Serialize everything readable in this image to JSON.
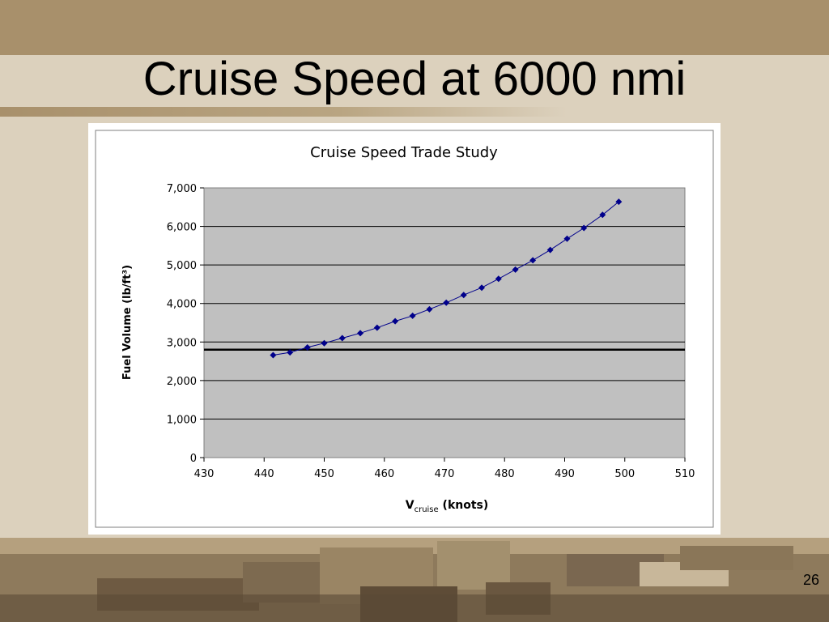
{
  "slide": {
    "title": "Cruise Speed at 6000 nmi",
    "page_number": "26"
  },
  "chart_data": {
    "type": "scatter",
    "title": "Cruise Speed Trade Study",
    "xlabel_main": "V",
    "xlabel_sub": "cruise",
    "xlabel_unit": " (knots)",
    "ylabel": "Fuel Volume (lb/ft³)",
    "xlim": [
      430,
      510
    ],
    "ylim": [
      0,
      7000
    ],
    "x_ticks": [
      430,
      440,
      450,
      460,
      470,
      480,
      490,
      500,
      510
    ],
    "y_ticks": [
      0,
      1000,
      2000,
      3000,
      4000,
      5000,
      6000,
      7000
    ],
    "y_tick_labels": [
      "0",
      "1,000",
      "2,000",
      "3,000",
      "4,000",
      "5,000",
      "6,000",
      "7,000"
    ],
    "grid": true,
    "series": [
      {
        "x": [
          441.5,
          444.3,
          447.2,
          450.0,
          453.0,
          456.0,
          458.8,
          461.8,
          464.7,
          467.5,
          470.3,
          473.2,
          476.2,
          479.0,
          481.8,
          484.7,
          487.6,
          490.4,
          493.2,
          496.3,
          499.0
        ],
        "y": [
          2660,
          2730,
          2860,
          2970,
          3100,
          3230,
          3370,
          3540,
          3680,
          3850,
          4020,
          4220,
          4410,
          4640,
          4880,
          5120,
          5390,
          5680,
          5960,
          6300,
          6640
        ],
        "color": "#00008b"
      }
    ],
    "reference_line": {
      "y": 2800,
      "color": "#000000"
    }
  }
}
